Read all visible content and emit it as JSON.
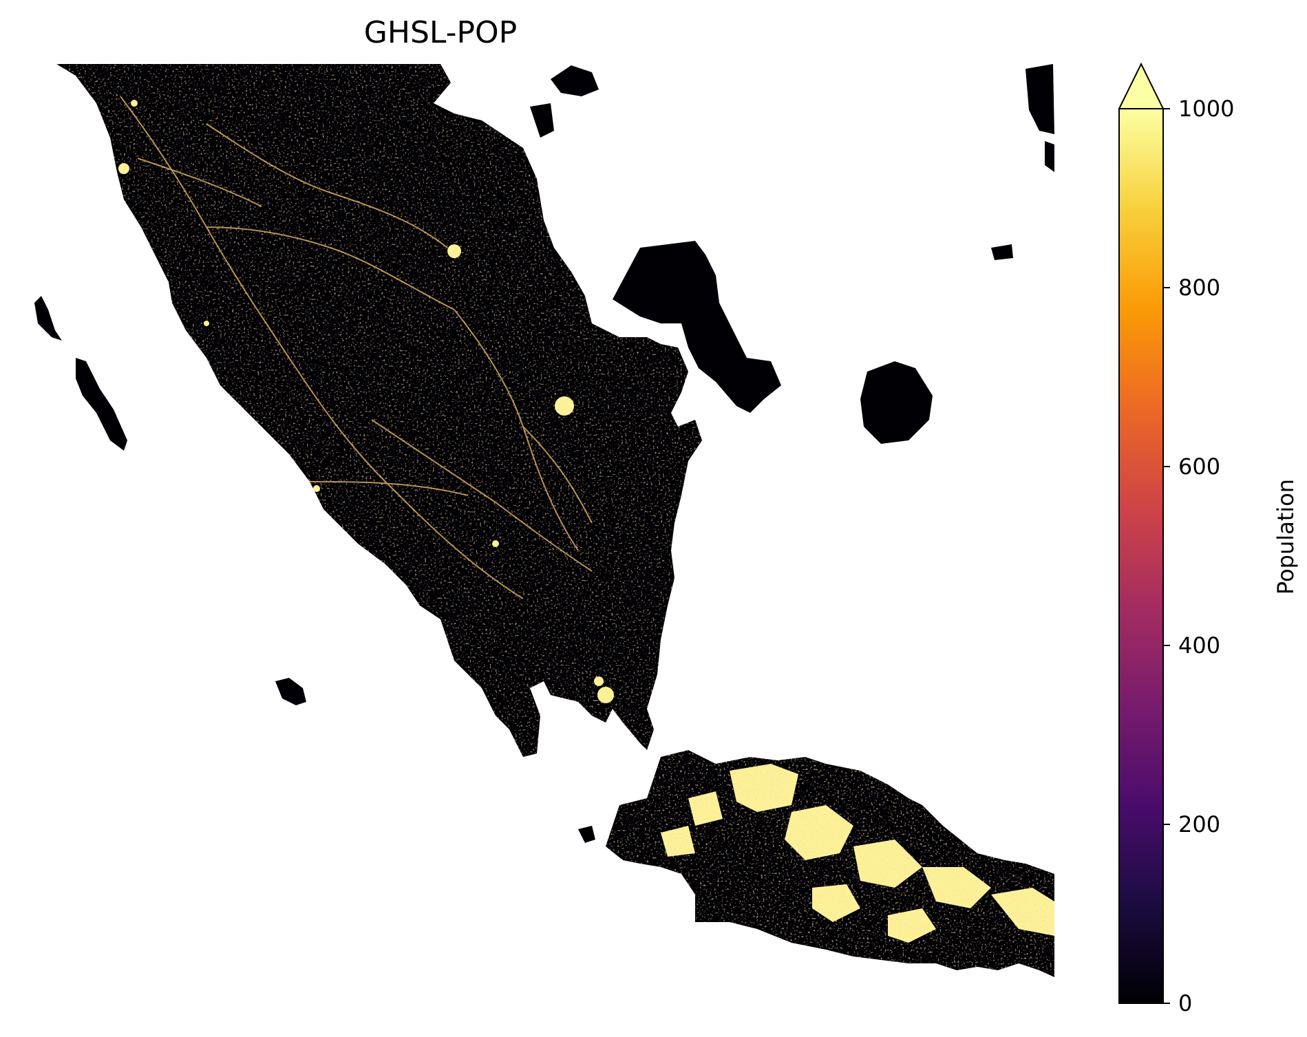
{
  "title": "GHSL-POP",
  "colorbar": {
    "label": "Population",
    "ticks": [
      "0",
      "200",
      "400",
      "600",
      "800",
      "1000"
    ],
    "tick_values": [
      0,
      200,
      400,
      600,
      800,
      1000
    ],
    "vmin": 0,
    "vmax": 1000,
    "extend": "max",
    "colormap": "inferno",
    "stops": [
      "#000004",
      "#1b0c41",
      "#4a0c6b",
      "#781c6d",
      "#a52c60",
      "#cf4446",
      "#ed6925",
      "#fb9b06",
      "#f7d13d",
      "#fcffa4"
    ]
  },
  "colors": {
    "land_background": "#000004",
    "high_density": "#fcf196",
    "medium_density": "#e76f3a",
    "low_density": "#6a1c6e",
    "water": "#ffffff"
  }
}
